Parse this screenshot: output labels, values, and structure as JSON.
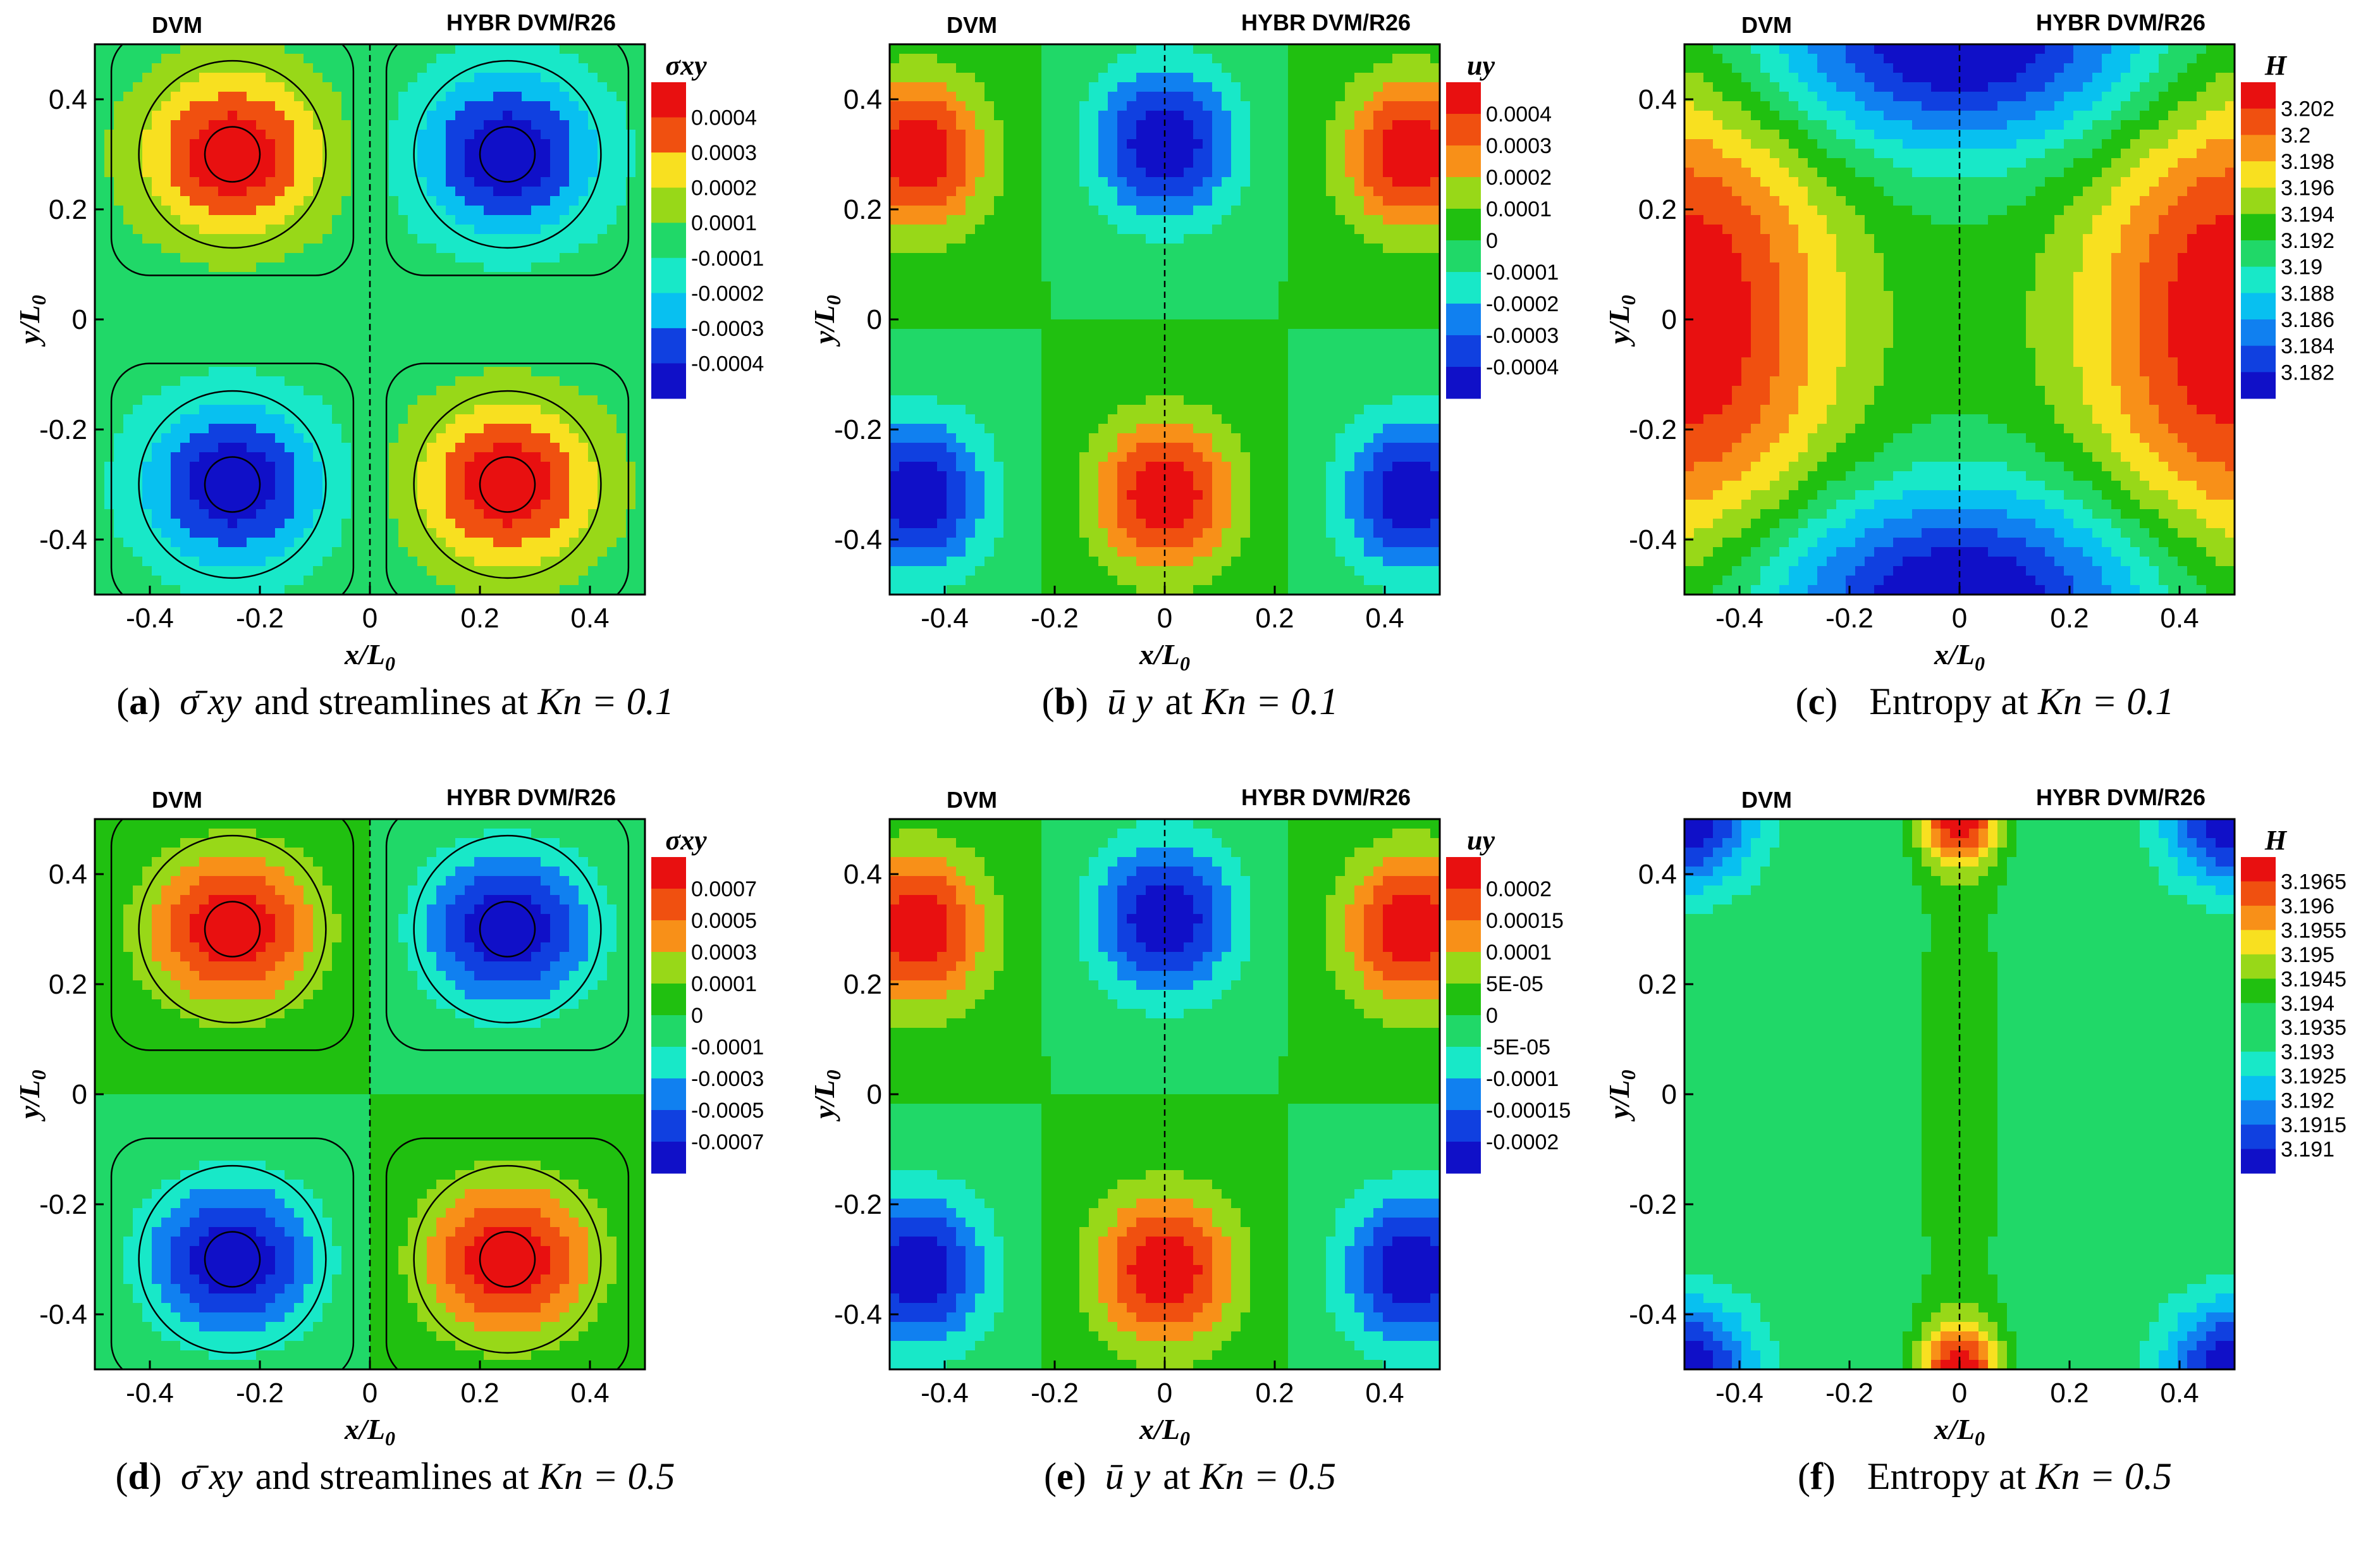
{
  "panels": [
    {
      "id": "a",
      "caption": {
        "label": "a",
        "symbol": "σ̄ xy",
        "text": "and streamlines at",
        "kn": "Kn = 0.1"
      },
      "chart_data": {
        "type": "heatmap",
        "left_title": "DVM",
        "right_title": "HYBR DVM/R26",
        "xlabel": "x/L0",
        "ylabel": "y/L0",
        "xlim": [
          -0.5,
          0.5
        ],
        "ylim": [
          -0.5,
          0.5
        ],
        "x_ticks": [
          "-0.4",
          "-0.2",
          "0",
          "0.2",
          "0.4"
        ],
        "y_ticks": [
          "0.4",
          "0.2",
          "0",
          "-0.2",
          "-0.4"
        ],
        "colorbar_title": "σxy",
        "colorbar_levels": [
          "0.0004",
          "0.0003",
          "0.0002",
          "0.0001",
          "-0.0001",
          "-0.0002",
          "-0.0003",
          "-0.0004"
        ],
        "field": {
          "pattern": "vortices",
          "extrema": [
            {
              "x": -0.25,
              "y": 0.3,
              "sign": 1
            },
            {
              "x": 0.25,
              "y": 0.3,
              "sign": -1
            },
            {
              "x": -0.25,
              "y": -0.3,
              "sign": -1
            },
            {
              "x": 0.25,
              "y": -0.3,
              "sign": 1
            }
          ]
        },
        "streamlines": true
      }
    },
    {
      "id": "b",
      "caption": {
        "label": "b",
        "symbol": "ū y",
        "text": "at",
        "kn": "Kn = 0.1"
      },
      "chart_data": {
        "type": "heatmap",
        "left_title": "DVM",
        "right_title": "HYBR DVM/R26",
        "xlabel": "x/L0",
        "ylabel": "y/L0",
        "xlim": [
          -0.5,
          0.5
        ],
        "ylim": [
          -0.5,
          0.5
        ],
        "x_ticks": [
          "-0.4",
          "-0.2",
          "0",
          "0.2",
          "0.4"
        ],
        "y_ticks": [
          "0.4",
          "0.2",
          "0",
          "-0.2",
          "-0.4"
        ],
        "colorbar_title": "uy",
        "colorbar_levels": [
          "0.0004",
          "0.0003",
          "0.0002",
          "0.0001",
          "0",
          "-0.0001",
          "-0.0002",
          "-0.0003",
          "-0.0004"
        ],
        "field": {
          "pattern": "velocity",
          "extrema": [
            {
              "x": -0.45,
              "y": 0.3,
              "sign": 1
            },
            {
              "x": 0.0,
              "y": 0.32,
              "sign": -1
            },
            {
              "x": 0.45,
              "y": 0.3,
              "sign": 1
            },
            {
              "x": -0.45,
              "y": -0.32,
              "sign": -1
            },
            {
              "x": 0.0,
              "y": -0.32,
              "sign": 1
            },
            {
              "x": 0.45,
              "y": -0.32,
              "sign": -1
            }
          ]
        },
        "streamlines": false
      }
    },
    {
      "id": "c",
      "caption": {
        "label": "c",
        "symbol": "",
        "text": "Entropy at",
        "kn": "Kn = 0.1"
      },
      "chart_data": {
        "type": "heatmap",
        "left_title": "DVM",
        "right_title": "HYBR DVM/R26",
        "xlabel": "x/L0",
        "ylabel": "y/L0",
        "xlim": [
          -0.5,
          0.5
        ],
        "ylim": [
          -0.5,
          0.5
        ],
        "x_ticks": [
          "-0.4",
          "-0.2",
          "0",
          "0.2",
          "0.4"
        ],
        "y_ticks": [
          "0.4",
          "0.2",
          "0",
          "-0.2",
          "-0.4"
        ],
        "colorbar_title": "H",
        "colorbar_levels": [
          "3.202",
          "3.2",
          "3.198",
          "3.196",
          "3.194",
          "3.192",
          "3.19",
          "3.188",
          "3.186",
          "3.184",
          "3.182"
        ],
        "field": {
          "pattern": "entropy",
          "high_at": "x = ±0.5, y = 0",
          "low_at": "x = 0, y = ±0.5"
        },
        "streamlines": false
      }
    },
    {
      "id": "d",
      "caption": {
        "label": "d",
        "symbol": "σ̄ xy",
        "text": "and streamlines at",
        "kn": "Kn = 0.5"
      },
      "chart_data": {
        "type": "heatmap",
        "left_title": "DVM",
        "right_title": "HYBR DVM/R26",
        "xlabel": "x/L0",
        "ylabel": "y/L0",
        "xlim": [
          -0.5,
          0.5
        ],
        "ylim": [
          -0.5,
          0.5
        ],
        "x_ticks": [
          "-0.4",
          "-0.2",
          "0",
          "0.2",
          "0.4"
        ],
        "y_ticks": [
          "0.4",
          "0.2",
          "0",
          "-0.2",
          "-0.4"
        ],
        "colorbar_title": "σxy",
        "colorbar_levels": [
          "0.0007",
          "0.0005",
          "0.0003",
          "0.0001",
          "0",
          "-0.0001",
          "-0.0003",
          "-0.0005",
          "-0.0007"
        ],
        "field": {
          "pattern": "vortices",
          "extrema": [
            {
              "x": -0.25,
              "y": 0.3,
              "sign": 1
            },
            {
              "x": 0.25,
              "y": 0.3,
              "sign": -1
            },
            {
              "x": -0.25,
              "y": -0.3,
              "sign": -1
            },
            {
              "x": 0.25,
              "y": -0.3,
              "sign": 1
            }
          ]
        },
        "streamlines": true
      }
    },
    {
      "id": "e",
      "caption": {
        "label": "e",
        "symbol": "ū y",
        "text": "at",
        "kn": "Kn = 0.5"
      },
      "chart_data": {
        "type": "heatmap",
        "left_title": "DVM",
        "right_title": "HYBR DVM/R26",
        "xlabel": "x/L0",
        "ylabel": "y/L0",
        "xlim": [
          -0.5,
          0.5
        ],
        "ylim": [
          -0.5,
          0.5
        ],
        "x_ticks": [
          "-0.4",
          "-0.2",
          "0",
          "0.2",
          "0.4"
        ],
        "y_ticks": [
          "0.4",
          "0.2",
          "0",
          "-0.2",
          "-0.4"
        ],
        "colorbar_title": "uy",
        "colorbar_levels": [
          "0.0002",
          "0.00015",
          "0.0001",
          "5E-05",
          "0",
          "-5E-05",
          "-0.0001",
          "-0.00015",
          "-0.0002"
        ],
        "field": {
          "pattern": "velocity",
          "extrema": [
            {
              "x": -0.45,
              "y": 0.3,
              "sign": 1
            },
            {
              "x": 0.0,
              "y": 0.32,
              "sign": -1
            },
            {
              "x": 0.45,
              "y": 0.3,
              "sign": 1
            },
            {
              "x": -0.45,
              "y": -0.32,
              "sign": -1
            },
            {
              "x": 0.0,
              "y": -0.32,
              "sign": 1
            },
            {
              "x": 0.45,
              "y": -0.32,
              "sign": -1
            }
          ]
        },
        "streamlines": false
      }
    },
    {
      "id": "f",
      "caption": {
        "label": "f",
        "symbol": "",
        "text": "Entropy at",
        "kn": "Kn = 0.5"
      },
      "chart_data": {
        "type": "heatmap",
        "left_title": "DVM",
        "right_title": "HYBR DVM/R26",
        "xlabel": "x/L0",
        "ylabel": "y/L0",
        "xlim": [
          -0.5,
          0.5
        ],
        "ylim": [
          -0.5,
          0.5
        ],
        "x_ticks": [
          "-0.4",
          "-0.2",
          "0",
          "0.2",
          "0.4"
        ],
        "y_ticks": [
          "0.4",
          "0.2",
          "0",
          "-0.2",
          "-0.4"
        ],
        "colorbar_title": "H",
        "colorbar_levels": [
          "3.1965",
          "3.196",
          "3.1955",
          "3.195",
          "3.1945",
          "3.194",
          "3.1935",
          "3.193",
          "3.1925",
          "3.192",
          "3.1915",
          "3.191"
        ],
        "field": {
          "pattern": "entropy2",
          "high_at": "x = 0, y = ±0.5",
          "low_at": "corners"
        },
        "streamlines": false
      }
    }
  ]
}
